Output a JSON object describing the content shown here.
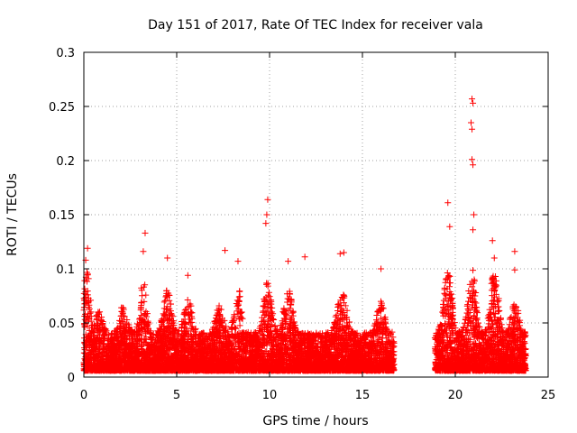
{
  "chart_data": {
    "type": "scatter",
    "title": "Day 151 of 2017, Rate Of TEC Index for receiver vala",
    "xlabel": "GPS time / hours",
    "ylabel": "ROTI / TECUs",
    "xlim": [
      0,
      25
    ],
    "ylim": [
      0,
      0.3
    ],
    "xticks": [
      0,
      5,
      10,
      15,
      20,
      25
    ],
    "xtick_labels": [
      "0",
      "5",
      "10",
      "15",
      "20",
      "25"
    ],
    "yticks": [
      0,
      0.05,
      0.1,
      0.15,
      0.2,
      0.25,
      0.3
    ],
    "ytick_labels": [
      "0",
      "0.05",
      "0.1",
      "0.15",
      "0.2",
      "0.25",
      "0.3"
    ],
    "grid": true,
    "marker": "+",
    "series_color": "#ff0000",
    "data_coverage_hours": [
      [
        0,
        16.7
      ],
      [
        18.9,
        23.8
      ]
    ],
    "peaks": [
      {
        "x": 0.2,
        "y": 0.119
      },
      {
        "x": 0.1,
        "y": 0.108
      },
      {
        "x": 3.3,
        "y": 0.133
      },
      {
        "x": 3.2,
        "y": 0.116
      },
      {
        "x": 4.5,
        "y": 0.11
      },
      {
        "x": 5.6,
        "y": 0.094
      },
      {
        "x": 7.6,
        "y": 0.117
      },
      {
        "x": 8.3,
        "y": 0.107
      },
      {
        "x": 9.9,
        "y": 0.164
      },
      {
        "x": 9.85,
        "y": 0.15
      },
      {
        "x": 9.8,
        "y": 0.142
      },
      {
        "x": 11.0,
        "y": 0.107
      },
      {
        "x": 11.9,
        "y": 0.111
      },
      {
        "x": 13.8,
        "y": 0.114
      },
      {
        "x": 14.0,
        "y": 0.115
      },
      {
        "x": 16.0,
        "y": 0.1
      },
      {
        "x": 19.6,
        "y": 0.161
      },
      {
        "x": 19.7,
        "y": 0.139
      },
      {
        "x": 20.9,
        "y": 0.257
      },
      {
        "x": 20.95,
        "y": 0.253
      },
      {
        "x": 20.85,
        "y": 0.235
      },
      {
        "x": 20.9,
        "y": 0.229
      },
      {
        "x": 20.9,
        "y": 0.201
      },
      {
        "x": 20.95,
        "y": 0.196
      },
      {
        "x": 21.0,
        "y": 0.15
      },
      {
        "x": 20.95,
        "y": 0.136
      },
      {
        "x": 22.0,
        "y": 0.126
      },
      {
        "x": 22.1,
        "y": 0.11
      },
      {
        "x": 23.2,
        "y": 0.116
      },
      {
        "x": 23.2,
        "y": 0.099
      }
    ]
  }
}
